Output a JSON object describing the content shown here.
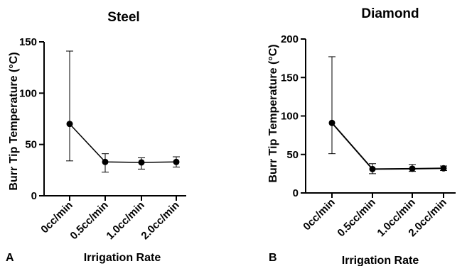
{
  "panels": [
    {
      "letter": "A",
      "chart_data": {
        "type": "line",
        "title": "Steel",
        "xlabel": "Irrigation Rate",
        "ylabel": "Burr Tip Temperature (°C)",
        "categories": [
          "0cc/min",
          "0.5cc/min",
          "1.0cc/min",
          "2.0cc/min"
        ],
        "series": [
          {
            "values": [
              70,
              33,
              32.5,
              33
            ],
            "error_low": [
              34,
              23,
              26,
              28
            ],
            "error_high": [
              141,
              41,
              37,
              38
            ]
          }
        ],
        "ylim": [
          0,
          150
        ],
        "yticks": [
          0,
          50,
          100,
          150
        ],
        "grid": false
      }
    },
    {
      "letter": "B",
      "chart_data": {
        "type": "line",
        "title": "Diamond",
        "xlabel": "Irrigation Rate",
        "ylabel": "Burr Tip Temperature (°C)",
        "categories": [
          "0cc/min",
          "0.5cc/min",
          "1.0cc/min",
          "2.0cc/min"
        ],
        "series": [
          {
            "values": [
              91,
              31,
              31.5,
              32
            ],
            "error_low": [
              51,
              25,
              28,
              29
            ],
            "error_high": [
              177,
              38,
              37,
              35
            ]
          }
        ],
        "ylim": [
          0,
          200
        ],
        "yticks": [
          0,
          50,
          100,
          150,
          200
        ],
        "grid": false
      }
    }
  ]
}
